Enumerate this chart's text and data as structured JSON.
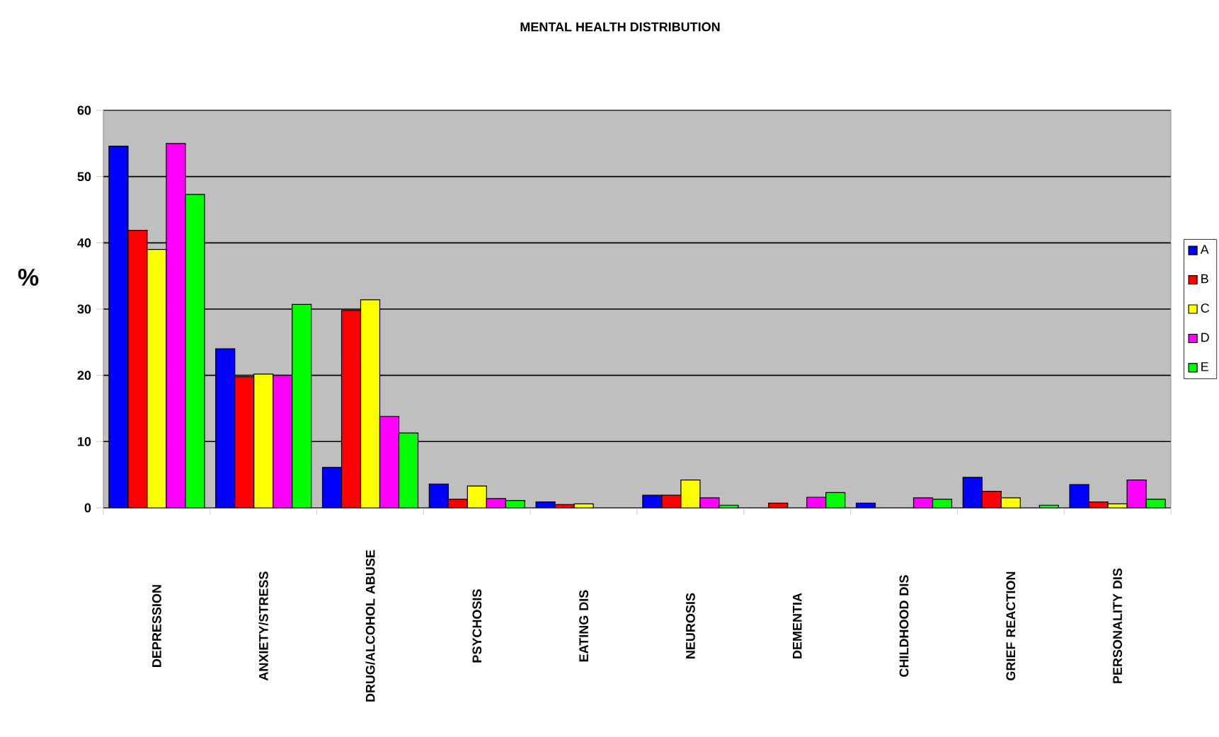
{
  "chart_data": {
    "type": "bar",
    "title": "MENTAL HEALTH DISTRIBUTION",
    "ylabel": "%",
    "categories": [
      "DEPRESSION",
      "ANXIETY/STRESS",
      "DRUG/ALCOHOL ABUSE",
      "PSYCHOSIS",
      "EATING DIS",
      "NEUROSIS",
      "DEMENTIA",
      "CHILDHOOD DIS",
      "GRIEF REACTION",
      "PERSONALITY DIS"
    ],
    "series": [
      {
        "name": "A",
        "color": "#0000ff",
        "values": [
          54.6,
          24,
          6.1,
          3.6,
          0.9,
          1.9,
          null,
          0.7,
          4.6,
          3.5
        ]
      },
      {
        "name": "B",
        "color": "#ff0000",
        "values": [
          41.9,
          19.8,
          29.8,
          1.3,
          0.5,
          1.9,
          0.7,
          null,
          2.5,
          0.9
        ]
      },
      {
        "name": "C",
        "color": "#ffff00",
        "values": [
          39,
          20.2,
          31.4,
          3.3,
          0.6,
          4.2,
          null,
          null,
          1.5,
          0.6
        ]
      },
      {
        "name": "D",
        "color": "#ff00ff",
        "values": [
          55,
          20,
          13.8,
          1.4,
          null,
          1.5,
          1.6,
          1.5,
          null,
          4.2
        ]
      },
      {
        "name": "E",
        "color": "#00ff00",
        "values": [
          47.3,
          30.7,
          11.3,
          1.1,
          null,
          0.4,
          2.3,
          1.3,
          0.4,
          1.3
        ]
      }
    ],
    "ylim": [
      0,
      60
    ],
    "yticks": [
      0,
      10,
      20,
      30,
      40,
      50,
      60
    ],
    "grid": "y",
    "legend": "right"
  }
}
